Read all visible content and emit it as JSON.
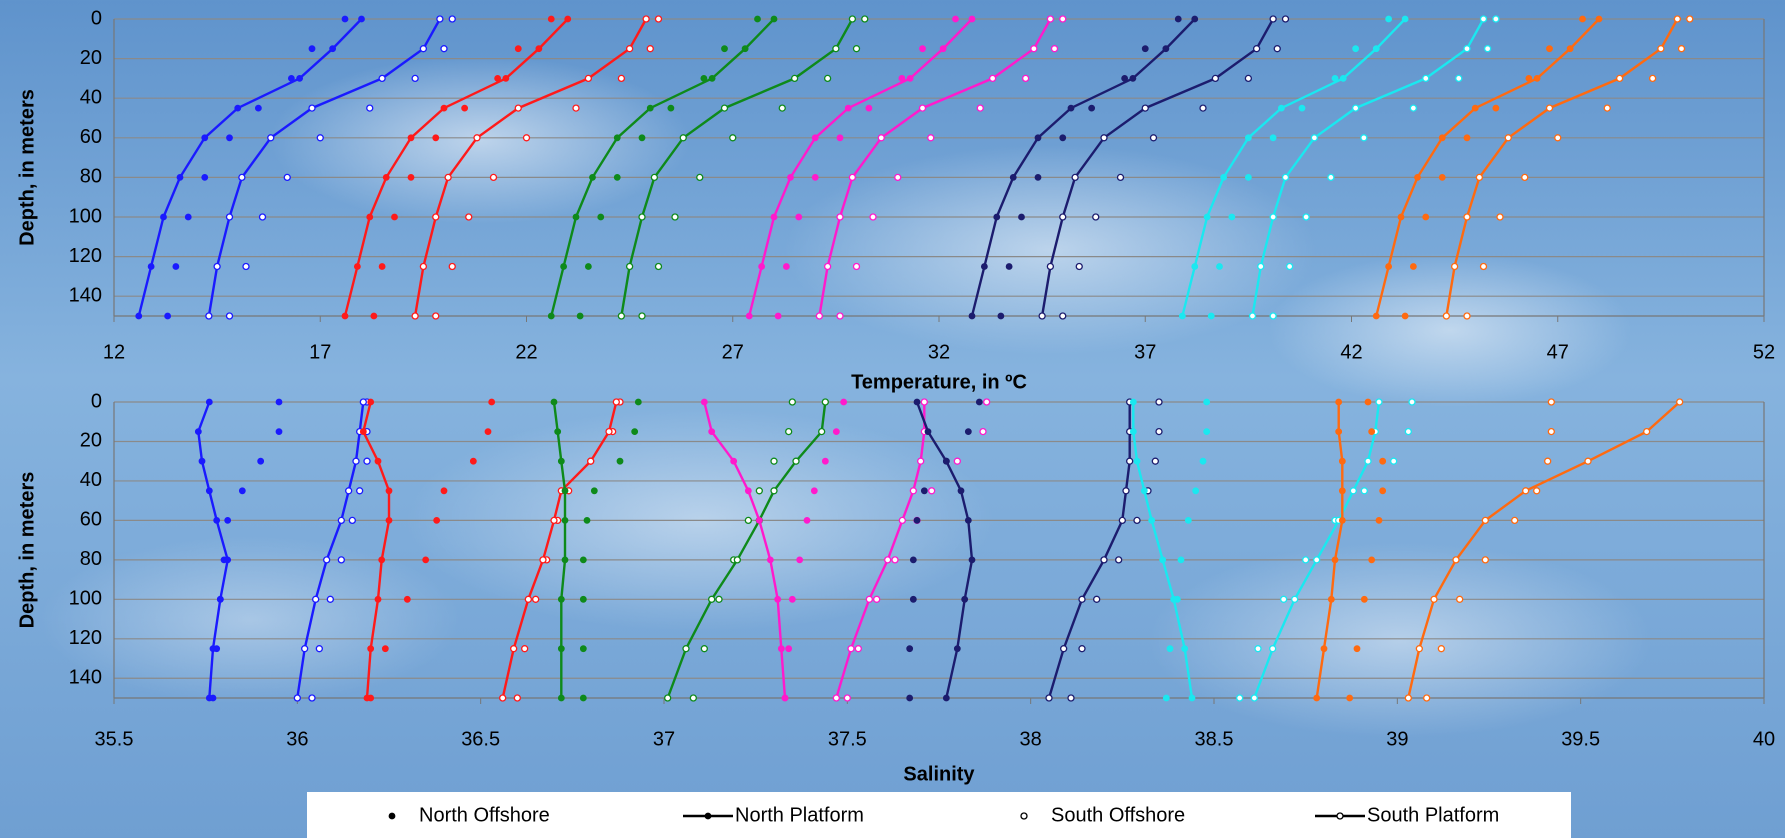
{
  "chart_data": [
    {
      "type": "scatter",
      "xlabel": "Temperature, in ºC",
      "ylabel": "Depth, in meters",
      "xlim": [
        12,
        52
      ],
      "xticks": [
        12,
        17,
        22,
        27,
        32,
        37,
        42,
        47,
        52
      ],
      "ylim": [
        0,
        150
      ],
      "y_inverted": true,
      "yticks": [
        0,
        20,
        40,
        60,
        80,
        100,
        120,
        140
      ],
      "grid": true,
      "y": [
        0,
        15,
        30,
        45,
        60,
        80,
        100,
        125,
        150
      ],
      "series": [
        {
          "color": "#1a1aff",
          "marker": "filled",
          "line": false,
          "x": [
            17.6,
            16.8,
            16.3,
            15.5,
            14.8,
            14.2,
            13.8,
            13.5,
            13.3
          ]
        },
        {
          "color": "#1a1aff",
          "marker": "filled",
          "line": true,
          "x": [
            18.0,
            17.3,
            16.5,
            15.0,
            14.2,
            13.6,
            13.2,
            12.9,
            12.6
          ]
        },
        {
          "color": "#1a1aff",
          "marker": "open",
          "line": false,
          "x": [
            20.2,
            20.0,
            19.3,
            18.2,
            17.0,
            16.2,
            15.6,
            15.2,
            14.8
          ]
        },
        {
          "color": "#1a1aff",
          "marker": "open",
          "line": true,
          "x": [
            19.9,
            19.5,
            18.5,
            16.8,
            15.8,
            15.1,
            14.8,
            14.5,
            14.3
          ]
        },
        {
          "color": "#ff1a1a",
          "marker": "filled",
          "line": false,
          "x": [
            22.6,
            21.8,
            21.3,
            20.5,
            19.8,
            19.2,
            18.8,
            18.5,
            18.3
          ]
        },
        {
          "color": "#ff1a1a",
          "marker": "filled",
          "line": true,
          "x": [
            23.0,
            22.3,
            21.5,
            20.0,
            19.2,
            18.6,
            18.2,
            17.9,
            17.6
          ]
        },
        {
          "color": "#ff1a1a",
          "marker": "open",
          "line": false,
          "x": [
            25.2,
            25.0,
            24.3,
            23.2,
            22.0,
            21.2,
            20.6,
            20.2,
            19.8
          ]
        },
        {
          "color": "#ff1a1a",
          "marker": "open",
          "line": true,
          "x": [
            24.9,
            24.5,
            23.5,
            21.8,
            20.8,
            20.1,
            19.8,
            19.5,
            19.3
          ]
        },
        {
          "color": "#0e8a1a",
          "marker": "filled",
          "line": false,
          "x": [
            27.6,
            26.8,
            26.3,
            25.5,
            24.8,
            24.2,
            23.8,
            23.5,
            23.3
          ]
        },
        {
          "color": "#0e8a1a",
          "marker": "filled",
          "line": true,
          "x": [
            28.0,
            27.3,
            26.5,
            25.0,
            24.2,
            23.6,
            23.2,
            22.9,
            22.6
          ]
        },
        {
          "color": "#0e8a1a",
          "marker": "open",
          "line": false,
          "x": [
            30.2,
            30.0,
            29.3,
            28.2,
            27.0,
            26.2,
            25.6,
            25.2,
            24.8
          ]
        },
        {
          "color": "#0e8a1a",
          "marker": "open",
          "line": true,
          "x": [
            29.9,
            29.5,
            28.5,
            26.8,
            25.8,
            25.1,
            24.8,
            24.5,
            24.3
          ]
        },
        {
          "color": "#ff1acc",
          "marker": "filled",
          "line": false,
          "x": [
            32.4,
            31.6,
            31.1,
            30.3,
            29.6,
            29.0,
            28.6,
            28.3,
            28.1
          ]
        },
        {
          "color": "#ff1acc",
          "marker": "filled",
          "line": true,
          "x": [
            32.8,
            32.1,
            31.3,
            29.8,
            29.0,
            28.4,
            28.0,
            27.7,
            27.4
          ]
        },
        {
          "color": "#ff1acc",
          "marker": "open",
          "line": false,
          "x": [
            35.0,
            34.8,
            34.1,
            33.0,
            31.8,
            31.0,
            30.4,
            30.0,
            29.6
          ]
        },
        {
          "color": "#ff1acc",
          "marker": "open",
          "line": true,
          "x": [
            34.7,
            34.3,
            33.3,
            31.6,
            30.6,
            29.9,
            29.6,
            29.3,
            29.1
          ]
        },
        {
          "color": "#1c1c6e",
          "marker": "filled",
          "line": false,
          "x": [
            37.8,
            37.0,
            36.5,
            35.7,
            35.0,
            34.4,
            34.0,
            33.7,
            33.5
          ]
        },
        {
          "color": "#1c1c6e",
          "marker": "filled",
          "line": true,
          "x": [
            38.2,
            37.5,
            36.7,
            35.2,
            34.4,
            33.8,
            33.4,
            33.1,
            32.8
          ]
        },
        {
          "color": "#1c1c6e",
          "marker": "open",
          "line": false,
          "x": [
            40.4,
            40.2,
            39.5,
            38.4,
            37.2,
            36.4,
            35.8,
            35.4,
            35.0
          ]
        },
        {
          "color": "#1c1c6e",
          "marker": "open",
          "line": true,
          "x": [
            40.1,
            39.7,
            38.7,
            37.0,
            36.0,
            35.3,
            35.0,
            34.7,
            34.5
          ]
        },
        {
          "color": "#1ae8f0",
          "marker": "filled",
          "line": false,
          "x": [
            42.9,
            42.1,
            41.6,
            40.8,
            40.1,
            39.5,
            39.1,
            38.8,
            38.6
          ]
        },
        {
          "color": "#1ae8f0",
          "marker": "filled",
          "line": true,
          "x": [
            43.3,
            42.6,
            41.8,
            40.3,
            39.5,
            38.9,
            38.5,
            38.2,
            37.9
          ]
        },
        {
          "color": "#1ae8f0",
          "marker": "open",
          "line": false,
          "x": [
            45.5,
            45.3,
            44.6,
            43.5,
            42.3,
            41.5,
            40.9,
            40.5,
            40.1
          ]
        },
        {
          "color": "#1ae8f0",
          "marker": "open",
          "line": true,
          "x": [
            45.2,
            44.8,
            43.8,
            42.1,
            41.1,
            40.4,
            40.1,
            39.8,
            39.6
          ]
        },
        {
          "color": "#ff6a10",
          "marker": "filled",
          "line": false,
          "x": [
            47.6,
            46.8,
            46.3,
            45.5,
            44.8,
            44.2,
            43.8,
            43.5,
            43.3
          ]
        },
        {
          "color": "#ff6a10",
          "marker": "filled",
          "line": true,
          "x": [
            48.0,
            47.3,
            46.5,
            45.0,
            44.2,
            43.6,
            43.2,
            42.9,
            42.6
          ]
        },
        {
          "color": "#ff6a10",
          "marker": "open",
          "line": false,
          "x": [
            50.2,
            50.0,
            49.3,
            48.2,
            47.0,
            46.2,
            45.6,
            45.2,
            44.8
          ]
        },
        {
          "color": "#ff6a10",
          "marker": "open",
          "line": true,
          "x": [
            49.9,
            49.5,
            48.5,
            46.8,
            45.8,
            45.1,
            44.8,
            44.5,
            44.3
          ]
        }
      ]
    },
    {
      "type": "scatter",
      "xlabel": "Salinity",
      "ylabel": "Depth, in meters",
      "xlim": [
        35.5,
        40
      ],
      "xticks": [
        35.5,
        36,
        36.5,
        37,
        37.5,
        38,
        38.5,
        39,
        39.5,
        40
      ],
      "ylim": [
        0,
        150
      ],
      "y_inverted": true,
      "yticks": [
        0,
        20,
        40,
        60,
        80,
        100,
        120,
        140
      ],
      "grid": true,
      "y": [
        0,
        15,
        30,
        45,
        60,
        80,
        100,
        125,
        150
      ],
      "series": [
        {
          "color": "#1a1aff",
          "marker": "filled",
          "line": false,
          "x": [
            35.95,
            35.95,
            35.9,
            35.85,
            35.81,
            35.8,
            35.79,
            35.78,
            35.77
          ]
        },
        {
          "color": "#1a1aff",
          "marker": "filled",
          "line": true,
          "x": [
            35.76,
            35.73,
            35.74,
            35.76,
            35.78,
            35.81,
            35.79,
            35.77,
            35.76
          ]
        },
        {
          "color": "#1a1aff",
          "marker": "open",
          "line": false,
          "x": [
            36.19,
            36.19,
            36.19,
            36.17,
            36.15,
            36.12,
            36.09,
            36.06,
            36.04
          ]
        },
        {
          "color": "#1a1aff",
          "marker": "open",
          "line": true,
          "x": [
            36.18,
            36.17,
            36.16,
            36.14,
            36.12,
            36.08,
            36.05,
            36.02,
            36.0
          ]
        },
        {
          "color": "#ff1a1a",
          "marker": "filled",
          "line": false,
          "x": [
            36.53,
            36.52,
            36.48,
            36.4,
            36.38,
            36.35,
            36.3,
            36.24,
            36.2
          ]
        },
        {
          "color": "#ff1a1a",
          "marker": "filled",
          "line": true,
          "x": [
            36.2,
            36.18,
            36.22,
            36.25,
            36.25,
            36.23,
            36.22,
            36.2,
            36.19
          ]
        },
        {
          "color": "#ff1a1a",
          "marker": "open",
          "line": false,
          "x": [
            36.88,
            36.86,
            36.8,
            36.74,
            36.71,
            36.68,
            36.65,
            36.62,
            36.6
          ]
        },
        {
          "color": "#ff1a1a",
          "marker": "open",
          "line": true,
          "x": [
            36.87,
            36.85,
            36.8,
            36.72,
            36.7,
            36.67,
            36.63,
            36.59,
            36.56
          ]
        },
        {
          "color": "#0e8a1a",
          "marker": "filled",
          "line": false,
          "x": [
            36.93,
            36.92,
            36.88,
            36.81,
            36.79,
            36.78,
            36.78,
            36.78,
            36.78
          ]
        },
        {
          "color": "#0e8a1a",
          "marker": "filled",
          "line": true,
          "x": [
            36.7,
            36.71,
            36.72,
            36.73,
            36.73,
            36.73,
            36.72,
            36.72,
            36.72
          ]
        },
        {
          "color": "#0e8a1a",
          "marker": "open",
          "line": false,
          "x": [
            37.35,
            37.34,
            37.3,
            37.26,
            37.23,
            37.19,
            37.15,
            37.11,
            37.08
          ]
        },
        {
          "color": "#0e8a1a",
          "marker": "open",
          "line": true,
          "x": [
            37.44,
            37.43,
            37.36,
            37.3,
            37.26,
            37.2,
            37.13,
            37.06,
            37.01
          ]
        },
        {
          "color": "#ff1acc",
          "marker": "filled",
          "line": false,
          "x": [
            37.49,
            37.47,
            37.44,
            37.41,
            37.39,
            37.37,
            37.35,
            37.34,
            37.33
          ]
        },
        {
          "color": "#ff1acc",
          "marker": "filled",
          "line": true,
          "x": [
            37.11,
            37.13,
            37.19,
            37.23,
            37.26,
            37.29,
            37.31,
            37.32,
            37.33
          ]
        },
        {
          "color": "#ff1acc",
          "marker": "open",
          "line": false,
          "x": [
            37.88,
            37.87,
            37.8,
            37.73,
            37.69,
            37.63,
            37.58,
            37.53,
            37.5
          ]
        },
        {
          "color": "#ff1acc",
          "marker": "open",
          "line": true,
          "x": [
            37.71,
            37.71,
            37.7,
            37.68,
            37.65,
            37.61,
            37.56,
            37.51,
            37.47
          ]
        },
        {
          "color": "#1c1c6e",
          "marker": "filled",
          "line": false,
          "x": [
            37.86,
            37.83,
            37.77,
            37.71,
            37.69,
            37.68,
            37.68,
            37.67,
            37.67
          ]
        },
        {
          "color": "#1c1c6e",
          "marker": "filled",
          "line": true,
          "x": [
            37.69,
            37.72,
            37.77,
            37.81,
            37.83,
            37.84,
            37.82,
            37.8,
            37.77
          ]
        },
        {
          "color": "#1c1c6e",
          "marker": "open",
          "line": false,
          "x": [
            38.35,
            38.35,
            38.34,
            38.32,
            38.29,
            38.24,
            38.18,
            38.14,
            38.11
          ]
        },
        {
          "color": "#1c1c6e",
          "marker": "open",
          "line": true,
          "x": [
            38.27,
            38.27,
            38.27,
            38.26,
            38.25,
            38.2,
            38.14,
            38.09,
            38.05
          ]
        },
        {
          "color": "#1ae8f0",
          "marker": "filled",
          "line": false,
          "x": [
            38.48,
            38.48,
            38.47,
            38.45,
            38.43,
            38.41,
            38.4,
            38.38,
            38.37
          ]
        },
        {
          "color": "#1ae8f0",
          "marker": "filled",
          "line": true,
          "x": [
            38.28,
            38.28,
            38.29,
            38.31,
            38.33,
            38.36,
            38.39,
            38.42,
            38.44
          ]
        },
        {
          "color": "#1ae8f0",
          "marker": "open",
          "line": false,
          "x": [
            39.04,
            39.03,
            38.99,
            38.91,
            38.83,
            38.75,
            38.69,
            38.62,
            38.57
          ]
        },
        {
          "color": "#1ae8f0",
          "marker": "open",
          "line": true,
          "x": [
            38.95,
            38.94,
            38.92,
            38.88,
            38.84,
            38.78,
            38.72,
            38.66,
            38.61
          ]
        },
        {
          "color": "#ff6a10",
          "marker": "filled",
          "line": false,
          "x": [
            38.92,
            38.93,
            38.96,
            38.96,
            38.95,
            38.93,
            38.91,
            38.89,
            38.87
          ]
        },
        {
          "color": "#ff6a10",
          "marker": "filled",
          "line": true,
          "x": [
            38.84,
            38.84,
            38.85,
            38.85,
            38.85,
            38.83,
            38.82,
            38.8,
            38.78
          ]
        },
        {
          "color": "#ff6a10",
          "marker": "open",
          "line": false,
          "x": [
            39.42,
            39.42,
            39.41,
            39.38,
            39.32,
            39.24,
            39.17,
            39.12,
            39.08
          ]
        },
        {
          "color": "#ff6a10",
          "marker": "open",
          "line": true,
          "x": [
            39.77,
            39.68,
            39.52,
            39.35,
            39.24,
            39.16,
            39.1,
            39.06,
            39.03
          ]
        }
      ]
    }
  ],
  "legend": [
    {
      "name": "North Offshore",
      "marker": "filled",
      "line": false
    },
    {
      "name": "North Platform",
      "marker": "filled",
      "line": true
    },
    {
      "name": "South Offshore",
      "marker": "open",
      "line": false
    },
    {
      "name": "South Platform",
      "marker": "open",
      "line": true
    }
  ]
}
